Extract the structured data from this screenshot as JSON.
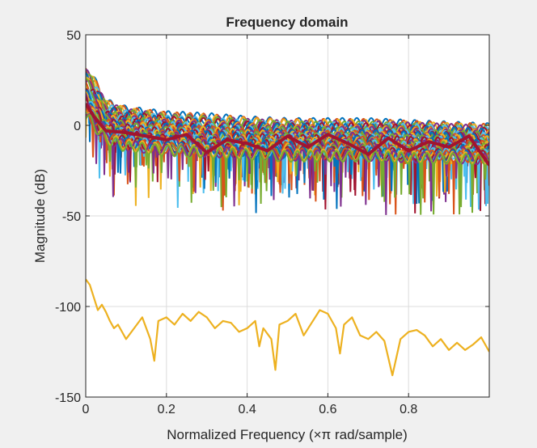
{
  "chart_data": {
    "type": "line",
    "title": "Frequency domain",
    "xlabel": "Normalized Frequency  (×π rad/sample)",
    "ylabel": "Magnitude (dB)",
    "xlim": [
      0,
      1
    ],
    "ylim": [
      -150,
      50
    ],
    "xticks": [
      0,
      0.2,
      0.4,
      0.6,
      0.8
    ],
    "xtick_labels": [
      "0",
      "0.2",
      "0.4",
      "0.6",
      "0.8"
    ],
    "yticks": [
      -150,
      -100,
      -50,
      0,
      50
    ],
    "ytick_labels": [
      "-150",
      "-100",
      "-50",
      "0",
      "50"
    ],
    "grid": true,
    "series_colors": [
      "#0072BD",
      "#D95319",
      "#EDB120",
      "#7E2F8E",
      "#77AC30",
      "#4DBEEE",
      "#A2142F"
    ],
    "series_count_estimate": 40,
    "series_envelope": {
      "x": [
        0,
        0.02,
        0.05,
        0.1,
        0.2,
        0.3,
        0.4,
        0.5,
        0.6,
        0.7,
        0.8,
        0.9,
        1.0
      ],
      "upper": [
        36,
        30,
        16,
        12,
        9,
        8,
        6,
        5,
        5,
        5,
        4,
        3,
        2
      ],
      "lower": [
        0,
        -5,
        -12,
        -16,
        -18,
        -19,
        -20,
        -21,
        -21,
        -21,
        -22,
        -22,
        -23
      ]
    },
    "highlight_series": {
      "name": "",
      "color": "#A2142F",
      "x": [
        0,
        0.02,
        0.05,
        0.1,
        0.15,
        0.2,
        0.25,
        0.3,
        0.35,
        0.4,
        0.45,
        0.5,
        0.55,
        0.6,
        0.65,
        0.7,
        0.75,
        0.8,
        0.85,
        0.9,
        0.95,
        1.0
      ],
      "y": [
        12,
        5,
        -3,
        -4,
        -6,
        -8,
        -5,
        -15,
        -8,
        -10,
        -14,
        -6,
        -12,
        -5,
        -10,
        -16,
        -7,
        -14,
        -9,
        -12,
        -6,
        -22
      ]
    },
    "low_series": {
      "name": "",
      "color": "#EDB120",
      "x": [
        0,
        0.01,
        0.02,
        0.03,
        0.04,
        0.05,
        0.06,
        0.07,
        0.08,
        0.09,
        0.1,
        0.12,
        0.14,
        0.16,
        0.17,
        0.18,
        0.2,
        0.22,
        0.24,
        0.26,
        0.28,
        0.3,
        0.32,
        0.34,
        0.36,
        0.38,
        0.4,
        0.42,
        0.43,
        0.44,
        0.46,
        0.47,
        0.48,
        0.5,
        0.52,
        0.54,
        0.56,
        0.58,
        0.6,
        0.62,
        0.63,
        0.64,
        0.66,
        0.68,
        0.7,
        0.72,
        0.74,
        0.76,
        0.78,
        0.8,
        0.82,
        0.84,
        0.86,
        0.88,
        0.9,
        0.92,
        0.94,
        0.96,
        0.98,
        1.0
      ],
      "y": [
        -85,
        -88,
        -95,
        -102,
        -99,
        -103,
        -108,
        -112,
        -110,
        -114,
        -118,
        -112,
        -106,
        -118,
        -130,
        -108,
        -106,
        -110,
        -104,
        -108,
        -103,
        -106,
        -112,
        -108,
        -109,
        -114,
        -112,
        -108,
        -122,
        -112,
        -118,
        -135,
        -110,
        -108,
        -104,
        -116,
        -109,
        -102,
        -104,
        -112,
        -126,
        -110,
        -106,
        -116,
        -118,
        -114,
        -119,
        -138,
        -118,
        -114,
        -113,
        -116,
        -122,
        -118,
        -124,
        -120,
        -124,
        -121,
        -117,
        -125
      ]
    }
  }
}
